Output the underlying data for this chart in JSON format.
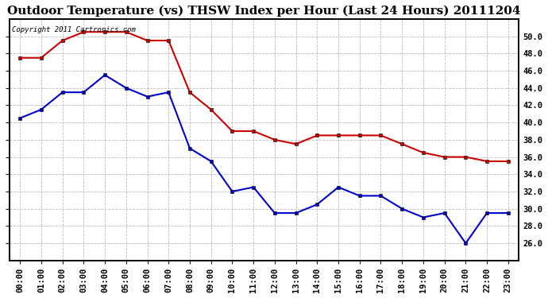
{
  "title": "Outdoor Temperature (vs) THSW Index per Hour (Last 24 Hours) 20111204",
  "copyright_text": "Copyright 2011 Cartronics.com",
  "hours": [
    "00:00",
    "01:00",
    "02:00",
    "03:00",
    "04:00",
    "05:00",
    "06:00",
    "07:00",
    "08:00",
    "09:00",
    "10:00",
    "11:00",
    "12:00",
    "13:00",
    "14:00",
    "15:00",
    "16:00",
    "17:00",
    "18:00",
    "19:00",
    "20:00",
    "21:00",
    "22:00",
    "23:00"
  ],
  "red_data": [
    47.5,
    47.5,
    49.5,
    50.5,
    50.5,
    50.5,
    49.5,
    49.5,
    43.5,
    41.5,
    39.0,
    39.0,
    38.0,
    37.5,
    38.5,
    38.5,
    38.5,
    38.5,
    37.5,
    36.5,
    36.0,
    36.0,
    35.5,
    35.5
  ],
  "blue_data": [
    40.5,
    41.5,
    43.5,
    43.5,
    45.5,
    44.0,
    43.0,
    43.5,
    37.0,
    35.5,
    32.0,
    32.5,
    29.5,
    29.5,
    30.5,
    32.5,
    31.5,
    31.5,
    30.0,
    29.0,
    29.5,
    26.0,
    29.5,
    29.5
  ],
  "red_color": "#cc0000",
  "blue_color": "#0000cc",
  "bg_color": "#ffffff",
  "grid_color": "#aaaaaa",
  "ylim": [
    24.0,
    52.0
  ],
  "yticks": [
    26.0,
    28.0,
    30.0,
    32.0,
    34.0,
    36.0,
    38.0,
    40.0,
    42.0,
    44.0,
    46.0,
    48.0,
    50.0
  ],
  "title_fontsize": 11,
  "tick_fontsize": 7.5,
  "copyright_fontsize": 6.5,
  "marker": "s",
  "marker_size": 3.5,
  "line_width": 1.5
}
